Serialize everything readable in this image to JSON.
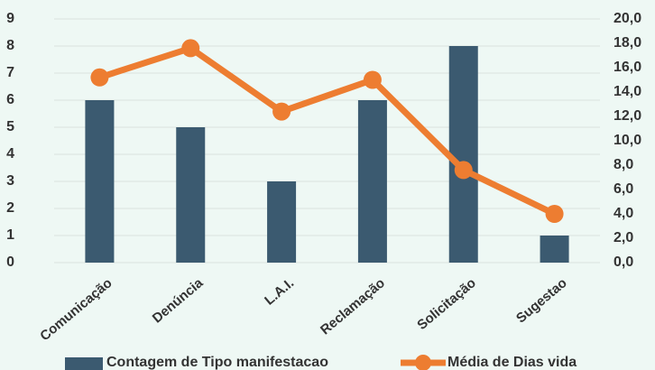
{
  "chart_data": {
    "type": "bar_line",
    "categories": [
      "Comunicação",
      "Denúncia",
      "L.A.I.",
      "Reclamação",
      "Solicitação",
      "Sugestao"
    ],
    "series": [
      {
        "name": "Contagem de Tipo manifestacao",
        "color": "#3b5a70",
        "values": [
          6,
          5,
          3,
          6,
          8,
          1
        ]
      },
      {
        "name": "Média de Dias vida",
        "color": "#ed7d31",
        "axis": "y2",
        "values": [
          15.2,
          17.6,
          12.4,
          15.0,
          7.6,
          4.0
        ]
      }
    ],
    "ylim": [
      0,
      9
    ],
    "yticks": [
      0,
      1,
      2,
      3,
      4,
      5,
      6,
      7,
      8,
      9
    ],
    "y2lim": [
      0,
      20
    ],
    "y2ticks": [
      {
        "value": 0,
        "label": "0,0"
      },
      {
        "value": 2,
        "label": "2,0"
      },
      {
        "value": 4,
        "label": "4,0"
      },
      {
        "value": 6,
        "label": "6,0"
      },
      {
        "value": 8,
        "label": "8,0"
      },
      {
        "value": 10,
        "label": "10,0"
      },
      {
        "value": 12,
        "label": "12,0"
      },
      {
        "value": 14,
        "label": "14,0"
      },
      {
        "value": 16,
        "label": "16,0"
      },
      {
        "value": 18,
        "label": "18,0"
      },
      {
        "value": 20,
        "label": "20,0"
      }
    ],
    "grid": true
  }
}
